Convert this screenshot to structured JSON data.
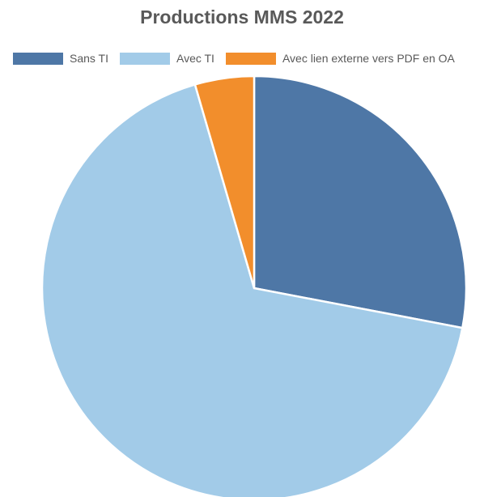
{
  "chart_data": {
    "type": "pie",
    "title": "Productions MMS 2022",
    "legend_position": "top",
    "categories": [
      "Sans TI",
      "Avec TI",
      "Avec lien externe vers PDF en OA"
    ],
    "values": [
      28,
      67.5,
      4.5
    ],
    "colors": [
      "#4e77a6",
      "#a2cbe8",
      "#f28e2c"
    ],
    "start_angle_deg": 0,
    "direction": "clockwise"
  }
}
